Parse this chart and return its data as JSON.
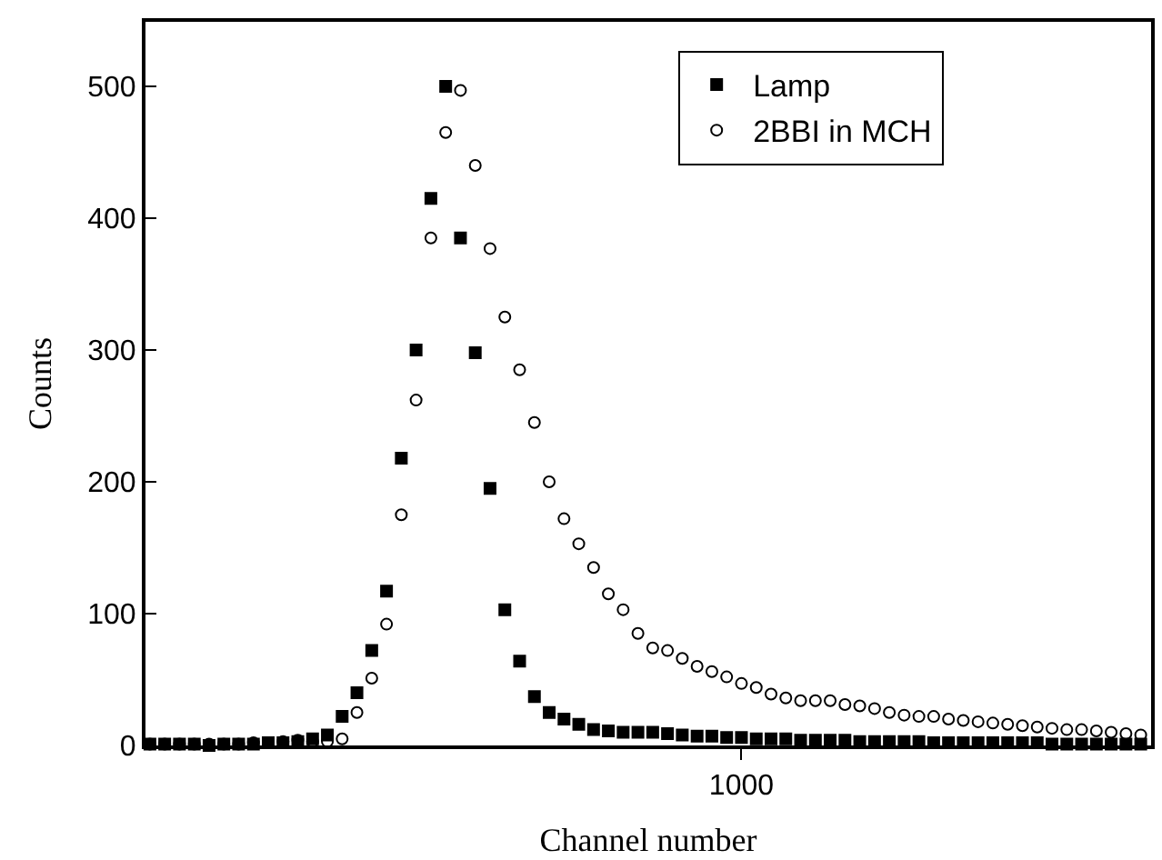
{
  "chart_data": {
    "type": "scatter",
    "xlabel": "Channel number",
    "ylabel": "Counts",
    "ylim": [
      0,
      549
    ],
    "yticks": [
      0,
      100,
      200,
      300,
      400,
      500
    ],
    "legend": "top right",
    "categories": [
      null,
      null,
      null,
      null,
      null,
      null,
      null,
      null,
      null,
      null,
      null,
      null,
      null,
      null,
      null,
      null,
      null,
      null,
      null,
      null,
      null,
      null,
      null,
      null,
      null,
      null,
      null,
      null,
      null,
      null,
      null,
      null,
      null,
      null,
      null,
      null,
      null,
      null,
      null,
      null,
      "1000",
      null,
      null,
      null,
      null,
      null,
      null,
      null,
      null,
      null,
      null,
      null,
      null,
      null,
      null,
      null,
      null,
      null,
      null,
      null,
      null,
      null,
      null,
      null,
      null,
      null,
      null,
      null
    ],
    "series": [
      {
        "name": "Lamp",
        "color": "#000000",
        "marker": "square",
        "values": [
          1,
          1,
          1,
          1,
          0,
          1,
          1,
          1,
          2,
          2,
          3,
          5,
          8,
          22,
          40,
          72,
          117,
          218,
          300,
          415,
          500,
          385,
          298,
          195,
          103,
          64,
          37,
          25,
          20,
          16,
          12,
          11,
          10,
          10,
          10,
          9,
          8,
          7,
          7,
          6,
          6,
          5,
          5,
          5,
          4,
          4,
          4,
          4,
          3,
          3,
          3,
          3,
          3,
          2,
          2,
          2,
          2,
          2,
          2,
          2,
          2,
          1,
          1,
          1,
          1,
          1,
          1,
          1
        ]
      },
      {
        "name": "2BBI in MCH",
        "color": "#000000",
        "marker": "circle-open",
        "values": [
          1,
          1,
          1,
          1,
          1,
          1,
          1,
          2,
          null,
          3,
          4,
          3,
          3,
          5,
          25,
          51,
          92,
          175,
          262,
          385,
          465,
          497,
          440,
          377,
          325,
          285,
          245,
          200,
          172,
          153,
          135,
          115,
          103,
          85,
          74,
          72,
          66,
          60,
          56,
          52,
          47,
          44,
          39,
          36,
          34,
          34,
          34,
          31,
          30,
          28,
          25,
          23,
          22,
          22,
          20,
          19,
          18,
          17,
          16,
          15,
          14,
          13,
          12,
          12,
          11,
          10,
          9,
          8
        ]
      }
    ]
  }
}
